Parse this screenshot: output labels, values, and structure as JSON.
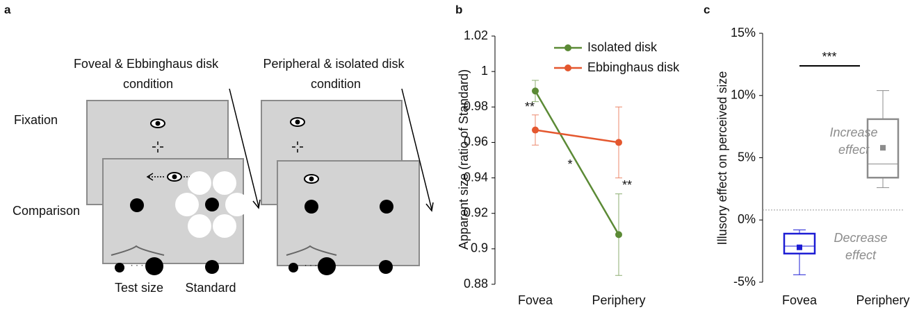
{
  "panel_a": {
    "label": "a",
    "conditions": [
      {
        "title_lines": [
          "Foveal & Ebbinghaus disk",
          "condition"
        ]
      },
      {
        "title_lines": [
          "Peripheral & isolated disk",
          "condition"
        ]
      }
    ],
    "rows": [
      "Fixation",
      "Comparison"
    ],
    "bottom_labels": [
      "Test size",
      "Standard"
    ]
  },
  "chart_data": [
    {
      "type": "line",
      "panel_label": "b",
      "y_label": "Apparent size (ratio of Standard)",
      "categories": [
        "Fovea",
        "Periphery"
      ],
      "ylim": [
        0.88,
        1.02
      ],
      "yticks": [
        0.88,
        0.9,
        0.92,
        0.94,
        0.96,
        0.98,
        1,
        1.02
      ],
      "series": [
        {
          "name": "Isolated disk",
          "color": "#5b8a35",
          "values": [
            0.989,
            0.908
          ],
          "errors": [
            0.006,
            0.023
          ]
        },
        {
          "name": "Ebbinghaus disk",
          "color": "#e4572e",
          "values": [
            0.967,
            0.96
          ],
          "errors": [
            0.0085,
            0.02
          ]
        }
      ],
      "annotations": [
        "**",
        "*",
        "**"
      ]
    },
    {
      "type": "box",
      "panel_label": "c",
      "y_label": "Illusory effect on perceived size",
      "categories": [
        "Fovea",
        "Periphery"
      ],
      "colors": [
        "#1c1cd4",
        "#8c8c8c"
      ],
      "ylim": [
        -5,
        15
      ],
      "yticks": [
        {
          "value": -5,
          "label": "-5%"
        },
        {
          "value": 0,
          "label": "0%"
        },
        {
          "value": 5,
          "label": "5%"
        },
        {
          "value": 10,
          "label": "10%"
        },
        {
          "value": 15,
          "label": "15%"
        }
      ],
      "whisker_low": [
        -4.4,
        2.6
      ],
      "q1": [
        -2.7,
        3.4
      ],
      "median": [
        -2.1,
        4.5
      ],
      "q3": [
        -1.1,
        8.1
      ],
      "whisker_high": [
        -0.8,
        10.4
      ],
      "mean": [
        -2.2,
        5.8
      ],
      "reference_line": 0.8,
      "significance": "***",
      "annotations": [
        [
          "Decrease",
          "effect"
        ],
        [
          "Increase",
          "effect"
        ]
      ]
    }
  ]
}
